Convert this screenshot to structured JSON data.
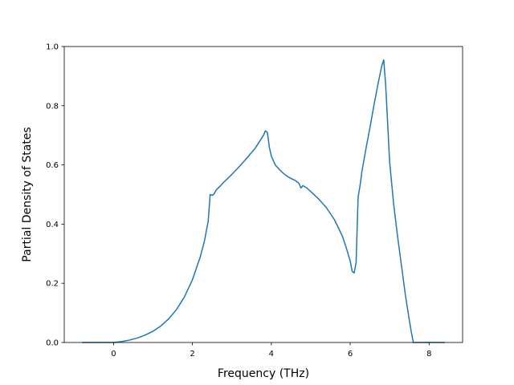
{
  "chart_data": {
    "type": "line",
    "title": "",
    "xlabel": "Frequency (THz)",
    "ylabel": "Partial Density of States",
    "xlim": [
      -1.25,
      8.85
    ],
    "ylim": [
      0.0,
      1.0
    ],
    "x_ticks": [
      0,
      2,
      4,
      6,
      8
    ],
    "y_ticks": [
      0.0,
      0.2,
      0.4,
      0.6,
      0.8,
      1.0
    ],
    "x_tick_labels": [
      "0",
      "2",
      "4",
      "6",
      "8"
    ],
    "y_tick_labels": [
      "0.0",
      "0.2",
      "0.4",
      "0.6",
      "0.8",
      "1.0"
    ],
    "grid": false,
    "legend": "none",
    "series": [
      {
        "color": "#1f77b4",
        "x": [
          -0.8,
          -0.4,
          0.0,
          0.2,
          0.4,
          0.6,
          0.8,
          1.0,
          1.2,
          1.4,
          1.6,
          1.8,
          2.0,
          2.2,
          2.3,
          2.4,
          2.45,
          2.5,
          2.55,
          2.6,
          2.7,
          2.8,
          3.0,
          3.2,
          3.4,
          3.6,
          3.8,
          3.85,
          3.9,
          3.95,
          4.0,
          4.1,
          4.2,
          4.3,
          4.4,
          4.5,
          4.6,
          4.7,
          4.75,
          4.8,
          4.9,
          5.0,
          5.2,
          5.4,
          5.6,
          5.8,
          5.9,
          6.0,
          6.05,
          6.1,
          6.15,
          6.2,
          6.25,
          6.3,
          6.4,
          6.5,
          6.6,
          6.7,
          6.8,
          6.85,
          6.9,
          7.0,
          7.1,
          7.2,
          7.3,
          7.4,
          7.5,
          7.55,
          7.6,
          7.65,
          7.7,
          8.0,
          8.4
        ],
        "y": [
          0.0,
          0.0,
          0.0,
          0.003,
          0.008,
          0.015,
          0.025,
          0.038,
          0.056,
          0.08,
          0.112,
          0.155,
          0.212,
          0.29,
          0.34,
          0.41,
          0.5,
          0.497,
          0.502,
          0.515,
          0.528,
          0.542,
          0.568,
          0.596,
          0.626,
          0.658,
          0.7,
          0.715,
          0.71,
          0.66,
          0.63,
          0.6,
          0.585,
          0.572,
          0.562,
          0.554,
          0.548,
          0.538,
          0.522,
          0.53,
          0.522,
          0.51,
          0.485,
          0.455,
          0.415,
          0.36,
          0.32,
          0.275,
          0.24,
          0.235,
          0.27,
          0.49,
          0.53,
          0.58,
          0.655,
          0.725,
          0.8,
          0.87,
          0.935,
          0.955,
          0.87,
          0.61,
          0.47,
          0.36,
          0.26,
          0.16,
          0.075,
          0.035,
          0.0,
          0.0,
          0.0,
          0.0,
          0.0
        ]
      }
    ]
  }
}
